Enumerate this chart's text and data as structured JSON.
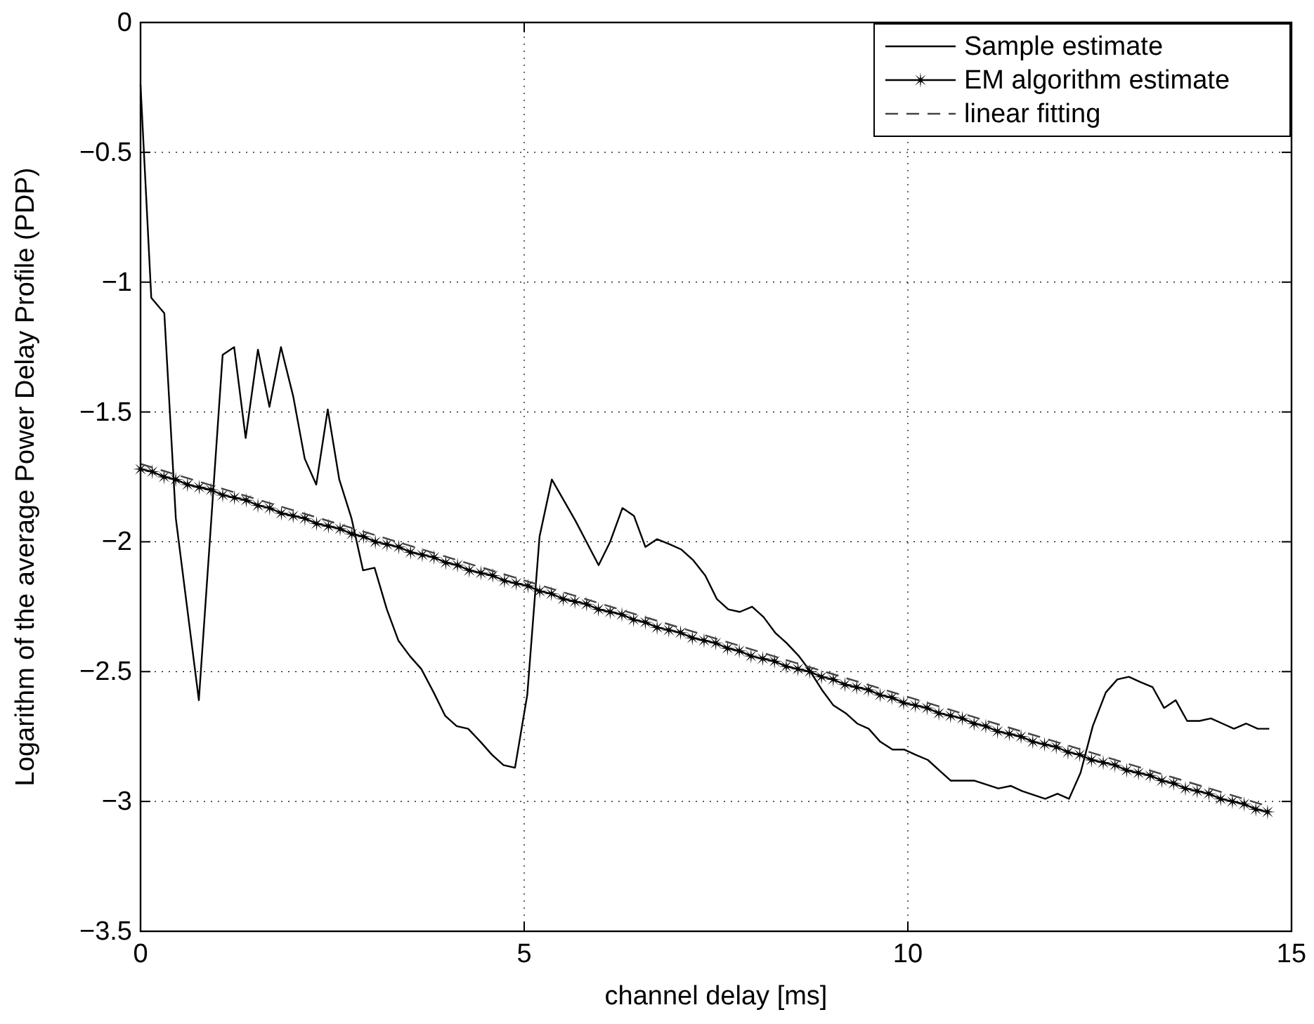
{
  "chart_data": {
    "type": "line",
    "xlabel": "channel delay [ms]",
    "ylabel": "Logarithm of the average Power Delay Profile (PDP)",
    "xlim": [
      0,
      15
    ],
    "xticks": [
      0,
      5,
      10,
      15
    ],
    "ylim": [
      -3.5,
      0
    ],
    "yticks": [
      -3.5,
      -3,
      -2.5,
      -2,
      -1.5,
      -1,
      -0.5,
      0
    ],
    "grid": true,
    "legend": "top right",
    "series": [
      {
        "name": "Sample estimate",
        "color": "#000000",
        "marker": "none",
        "line_style": "solid",
        "x": [
          0,
          0.14,
          0.31,
          0.46,
          0.76,
          1.07,
          1.22,
          1.37,
          1.53,
          1.68,
          1.83,
          1.99,
          2.14,
          2.29,
          2.44,
          2.59,
          2.75,
          2.9,
          3.05,
          3.21,
          3.36,
          3.51,
          3.66,
          3.82,
          3.97,
          4.12,
          4.27,
          4.43,
          4.58,
          4.73,
          4.88,
          5.04,
          5.2,
          5.36,
          5.67,
          5.97,
          6.12,
          6.28,
          6.43,
          6.58,
          6.73,
          6.9,
          7.05,
          7.2,
          7.36,
          7.51,
          7.66,
          7.81,
          7.97,
          8.12,
          8.27,
          8.42,
          8.58,
          8.73,
          8.88,
          9.03,
          9.19,
          9.34,
          9.49,
          9.64,
          9.8,
          9.95,
          10.1,
          10.26,
          10.41,
          10.56,
          10.87,
          11.18,
          11.34,
          11.49,
          11.79,
          11.95,
          12.1,
          12.25,
          12.41,
          12.58,
          12.73,
          12.88,
          13.03,
          13.19,
          13.34,
          13.49,
          13.64,
          13.8,
          13.95,
          14.1,
          14.25,
          14.41,
          14.56,
          14.71
        ],
        "values": [
          -0.24,
          -1.06,
          -1.12,
          -1.91,
          -2.61,
          -1.28,
          -1.25,
          -1.6,
          -1.26,
          -1.48,
          -1.25,
          -1.44,
          -1.68,
          -1.78,
          -1.49,
          -1.76,
          -1.91,
          -2.11,
          -2.1,
          -2.26,
          -2.38,
          -2.44,
          -2.49,
          -2.58,
          -2.67,
          -2.71,
          -2.72,
          -2.77,
          -2.82,
          -2.86,
          -2.87,
          -2.59,
          -1.98,
          -1.76,
          -1.92,
          -2.09,
          -2.0,
          -1.87,
          -1.9,
          -2.02,
          -1.99,
          -2.01,
          -2.03,
          -2.07,
          -2.13,
          -2.22,
          -2.26,
          -2.27,
          -2.25,
          -2.29,
          -2.35,
          -2.39,
          -2.44,
          -2.5,
          -2.57,
          -2.63,
          -2.66,
          -2.7,
          -2.72,
          -2.77,
          -2.8,
          -2.8,
          -2.82,
          -2.84,
          -2.88,
          -2.92,
          -2.92,
          -2.95,
          -2.94,
          -2.96,
          -2.99,
          -2.97,
          -2.99,
          -2.89,
          -2.71,
          -2.58,
          -2.53,
          -2.52,
          -2.54,
          -2.56,
          -2.64,
          -2.61,
          -2.69,
          -2.69,
          -2.68,
          -2.7,
          -2.72,
          -2.7,
          -2.72,
          -2.72
        ]
      },
      {
        "name": "EM algorithm estimate",
        "color": "#000000",
        "marker": "star",
        "line_style": "solid",
        "x": [
          0,
          0.153,
          0.306,
          0.459,
          0.612,
          0.765,
          0.918,
          1.071,
          1.224,
          1.377,
          1.53,
          1.683,
          1.836,
          1.989,
          2.142,
          2.295,
          2.448,
          2.601,
          2.754,
          2.907,
          3.06,
          3.213,
          3.366,
          3.519,
          3.672,
          3.825,
          3.978,
          4.131,
          4.284,
          4.437,
          4.59,
          4.743,
          4.896,
          5.049,
          5.202,
          5.355,
          5.508,
          5.661,
          5.814,
          5.967,
          6.12,
          6.273,
          6.426,
          6.579,
          6.732,
          6.885,
          7.038,
          7.191,
          7.344,
          7.497,
          7.65,
          7.803,
          7.956,
          8.109,
          8.262,
          8.415,
          8.568,
          8.721,
          8.874,
          9.027,
          9.18,
          9.333,
          9.486,
          9.639,
          9.792,
          9.945,
          10.098,
          10.251,
          10.404,
          10.557,
          10.71,
          10.863,
          11.016,
          11.169,
          11.322,
          11.475,
          11.628,
          11.781,
          11.934,
          12.087,
          12.24,
          12.393,
          12.546,
          12.699,
          12.852,
          13.005,
          13.158,
          13.311,
          13.464,
          13.617,
          13.77,
          13.923,
          14.076,
          14.229,
          14.382,
          14.535,
          14.688
        ],
        "values": [
          -1.72,
          -1.73,
          -1.75,
          -1.76,
          -1.78,
          -1.79,
          -1.8,
          -1.82,
          -1.83,
          -1.84,
          -1.86,
          -1.87,
          -1.89,
          -1.9,
          -1.91,
          -1.93,
          -1.94,
          -1.95,
          -1.97,
          -1.98,
          -2.0,
          -2.01,
          -2.02,
          -2.04,
          -2.05,
          -2.06,
          -2.08,
          -2.09,
          -2.11,
          -2.12,
          -2.13,
          -2.15,
          -2.16,
          -2.17,
          -2.19,
          -2.2,
          -2.22,
          -2.23,
          -2.24,
          -2.26,
          -2.27,
          -2.28,
          -2.3,
          -2.31,
          -2.33,
          -2.34,
          -2.35,
          -2.37,
          -2.38,
          -2.39,
          -2.41,
          -2.42,
          -2.44,
          -2.45,
          -2.46,
          -2.48,
          -2.49,
          -2.5,
          -2.52,
          -2.53,
          -2.55,
          -2.56,
          -2.57,
          -2.59,
          -2.6,
          -2.62,
          -2.63,
          -2.64,
          -2.66,
          -2.67,
          -2.68,
          -2.7,
          -2.71,
          -2.73,
          -2.74,
          -2.75,
          -2.77,
          -2.78,
          -2.79,
          -2.81,
          -2.82,
          -2.84,
          -2.85,
          -2.86,
          -2.88,
          -2.89,
          -2.9,
          -2.92,
          -2.93,
          -2.95,
          -2.96,
          -2.97,
          -2.99,
          -3.0,
          -3.01,
          -3.03,
          -3.04
        ]
      },
      {
        "name": "linear fitting",
        "color": "#444444",
        "marker": "none",
        "line_style": "dashed",
        "x": [
          0,
          14.71
        ],
        "values": [
          -1.7,
          -3.02
        ]
      }
    ]
  }
}
